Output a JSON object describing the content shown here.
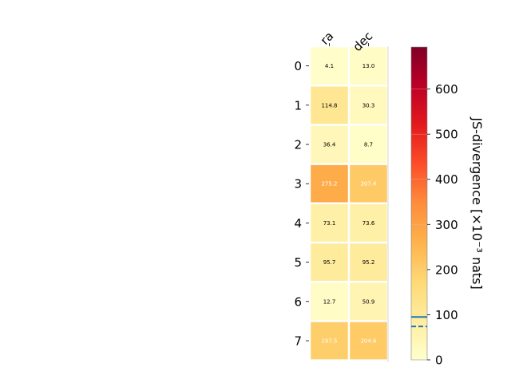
{
  "chart_data": {
    "type": "heatmap",
    "columns": [
      "ra",
      "dec"
    ],
    "rows": [
      "0",
      "1",
      "2",
      "3",
      "4",
      "5",
      "6",
      "7"
    ],
    "values": [
      [
        4.1,
        13.0
      ],
      [
        114.8,
        30.3
      ],
      [
        36.4,
        8.7
      ],
      [
        275.2,
        207.4
      ],
      [
        73.1,
        73.6
      ],
      [
        95.7,
        95.2
      ],
      [
        12.7,
        50.9
      ],
      [
        197.5,
        204.6
      ]
    ],
    "value_labels": [
      [
        "4.1",
        "13.0"
      ],
      [
        "114.8",
        "30.3"
      ],
      [
        "36.4",
        "8.7"
      ],
      [
        "275.2",
        "207.4"
      ],
      [
        "73.1",
        "73.6"
      ],
      [
        "95.7",
        "95.2"
      ],
      [
        "12.7",
        "50.9"
      ],
      [
        "197.5",
        "204.6"
      ]
    ],
    "colorbar": {
      "label": "JS-divergence [×10⁻³ nats]",
      "range": [
        0,
        693
      ],
      "ticks": [
        0,
        100,
        200,
        300,
        400,
        500,
        600
      ],
      "colormap": "YlOrRd",
      "reference_lines": [
        {
          "value": 95,
          "style": "solid",
          "color": "#1f77b4"
        },
        {
          "value": 74,
          "style": "dashed",
          "color": "#1f77b4"
        }
      ]
    },
    "text_colors": {
      "dark": "#000000",
      "light": "#ffffff"
    },
    "light_text_threshold": 190
  }
}
